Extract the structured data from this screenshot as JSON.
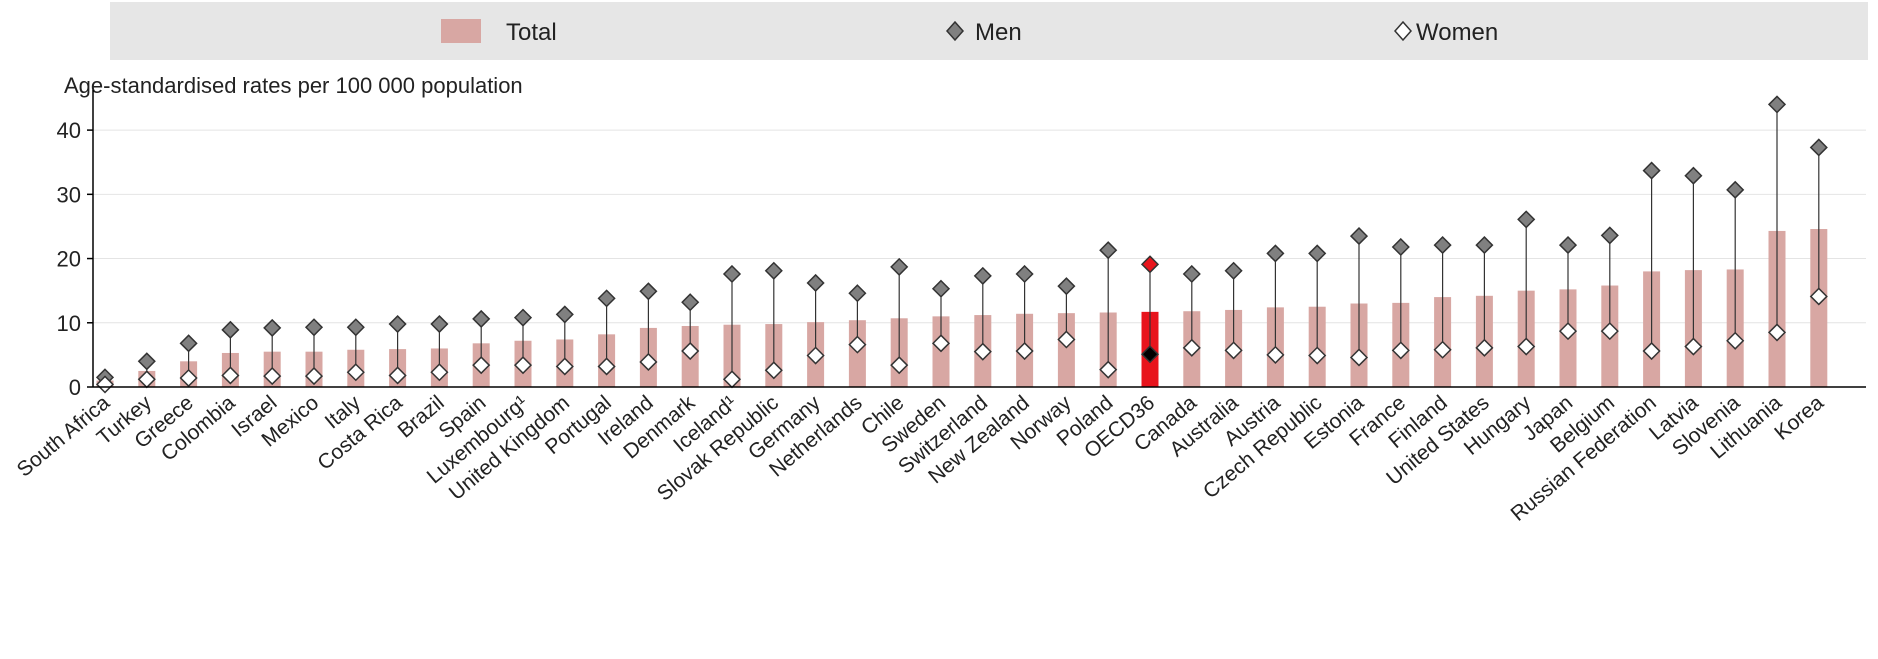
{
  "chart_data": {
    "type": "bar",
    "unit_label": "Age-standardised rates per 100 000 population",
    "legend": {
      "total": "Total",
      "men": "Men",
      "women": "Women"
    },
    "colors": {
      "total_bar": "#d8a7a3",
      "highlight_bar": "#e8141c",
      "men_marker": "#808080",
      "highlight_men_marker": "#e8141c",
      "women_marker": "#ffffff",
      "highlight_women_marker": "#000000",
      "legend_bg": "#e6e6e6"
    },
    "ylim": [
      0,
      45
    ],
    "yticks": [
      0,
      10,
      20,
      30,
      40
    ],
    "highlight_category": "OECD36",
    "categories": [
      "South Africa",
      "Turkey",
      "Greece",
      "Colombia",
      "Israel",
      "Mexico",
      "Italy",
      "Costa Rica",
      "Brazil",
      "Spain",
      "Luxembourg¹",
      "United Kingdom",
      "Portugal",
      "Ireland",
      "Denmark",
      "Iceland¹",
      "Slovak Republic",
      "Germany",
      "Netherlands",
      "Chile",
      "Sweden",
      "Switzerland",
      "New Zealand",
      "Norway",
      "Poland",
      "OECD36",
      "Canada",
      "Australia",
      "Austria",
      "Czech Republic",
      "Estonia",
      "France",
      "Finland",
      "United States",
      "Hungary",
      "Japan",
      "Belgium",
      "Russian Federation",
      "Latvia",
      "Slovenia",
      "Lithuania",
      "Korea"
    ],
    "series": [
      {
        "name": "Total",
        "values": [
          1.0,
          2.5,
          4.0,
          5.3,
          5.5,
          5.5,
          5.8,
          5.9,
          6.0,
          6.8,
          7.2,
          7.4,
          8.2,
          9.2,
          9.5,
          9.7,
          9.8,
          10.1,
          10.4,
          10.7,
          11.0,
          11.2,
          11.4,
          11.5,
          11.6,
          11.7,
          11.8,
          12.0,
          12.4,
          12.5,
          13.0,
          13.1,
          14.0,
          14.2,
          15.0,
          15.2,
          15.8,
          18.0,
          18.2,
          18.3,
          24.3,
          24.6
        ]
      },
      {
        "name": "Men",
        "values": [
          1.5,
          4.0,
          6.8,
          8.9,
          9.2,
          9.3,
          9.3,
          9.8,
          9.8,
          10.6,
          10.8,
          11.3,
          13.8,
          14.9,
          13.2,
          17.6,
          18.1,
          16.2,
          14.6,
          18.7,
          15.3,
          17.3,
          17.6,
          15.7,
          21.3,
          19.1,
          17.6,
          18.1,
          20.8,
          20.8,
          23.5,
          21.8,
          22.1,
          22.1,
          26.1,
          22.1,
          23.6,
          33.7,
          32.9,
          30.7,
          44.0,
          37.3
        ]
      },
      {
        "name": "Women",
        "values": [
          0.4,
          1.2,
          1.4,
          1.8,
          1.7,
          1.7,
          2.3,
          1.8,
          2.3,
          3.4,
          3.4,
          3.2,
          3.2,
          3.9,
          5.6,
          1.2,
          2.6,
          4.9,
          6.6,
          3.4,
          6.8,
          5.5,
          5.6,
          7.4,
          2.7,
          5.1,
          6.1,
          5.7,
          5.0,
          4.9,
          4.6,
          5.7,
          5.8,
          6.1,
          6.3,
          8.7,
          8.7,
          5.6,
          6.3,
          7.2,
          8.5,
          14.1
        ]
      }
    ]
  }
}
